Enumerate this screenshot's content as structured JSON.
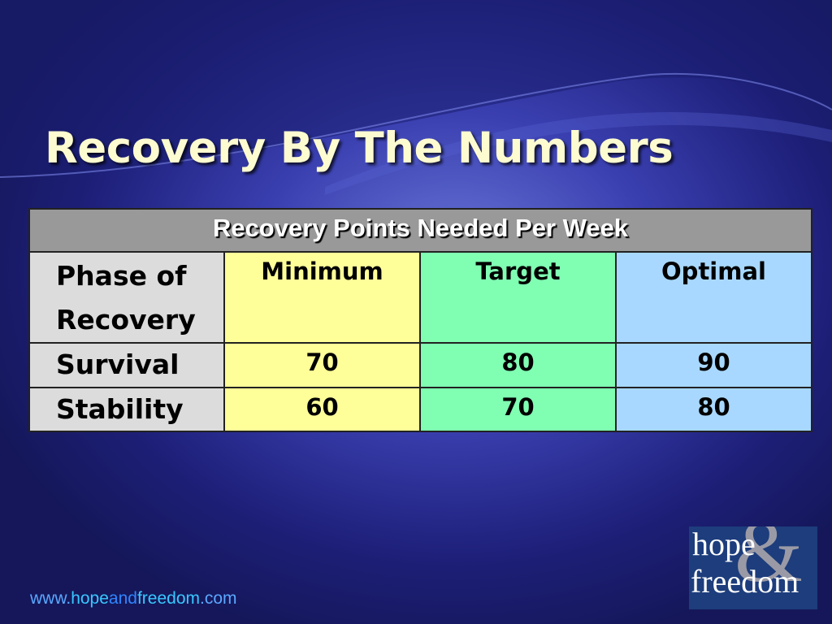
{
  "title": "Recovery By The Numbers",
  "table": {
    "caption": "Recovery Points Needed Per Week",
    "columns": [
      "Phase of Recovery",
      "Minimum",
      "Target",
      "Optimal"
    ],
    "rows": [
      [
        "Survival",
        70,
        80,
        90
      ],
      [
        "Stability",
        60,
        70,
        80
      ]
    ]
  },
  "footer": {
    "url": [
      "www.",
      "hope",
      "and",
      "freedom",
      ".com"
    ]
  },
  "logo": {
    "line1": "hope",
    "ampersand": "&",
    "line2": "freedom"
  }
}
